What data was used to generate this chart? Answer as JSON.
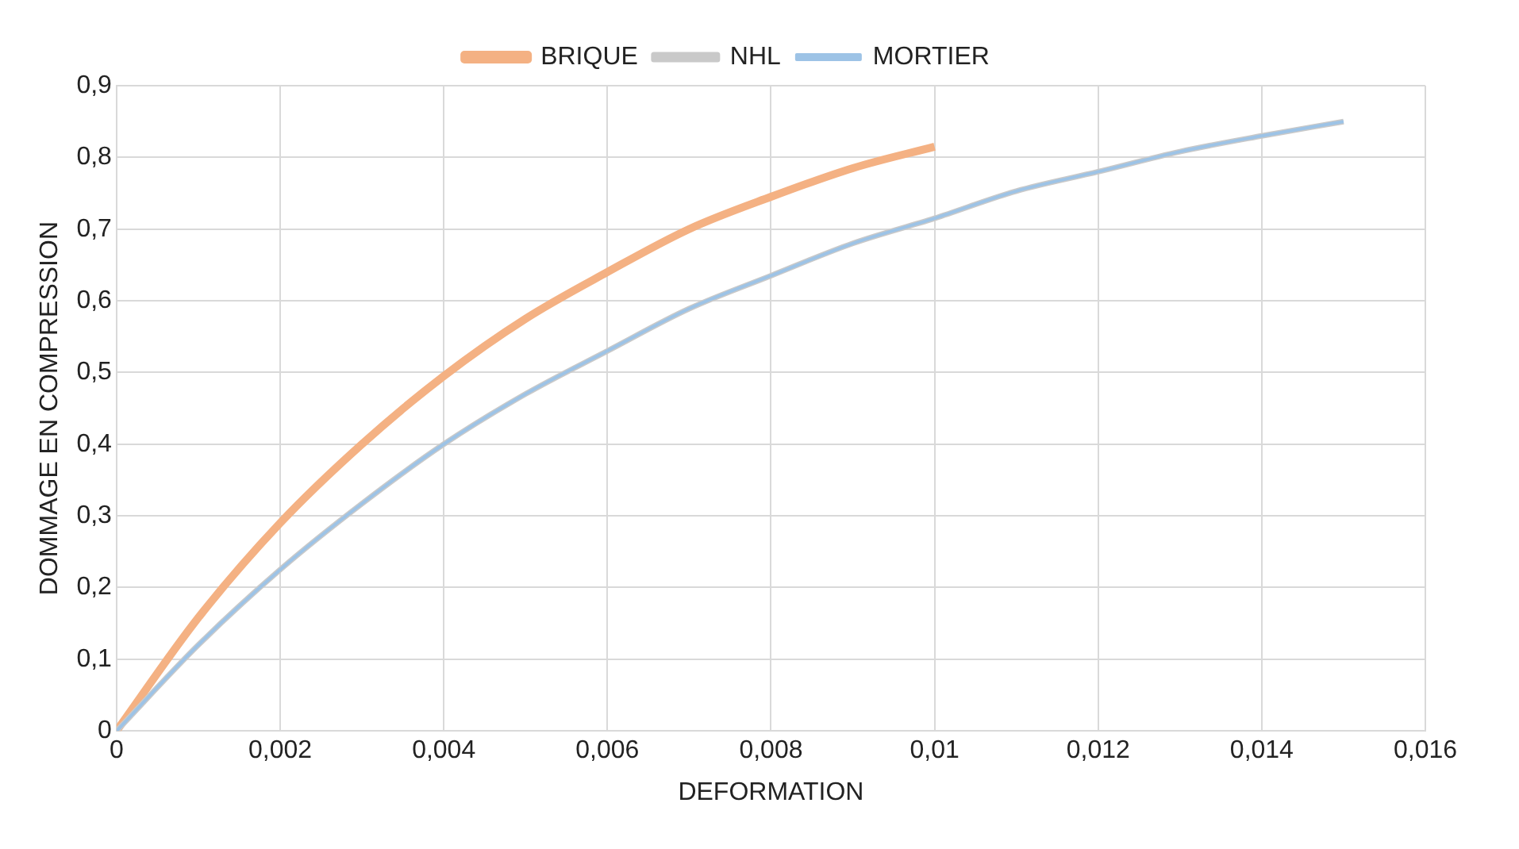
{
  "chart_data": {
    "type": "line",
    "xlabel": "DEFORMATION",
    "ylabel": "DOMMAGE EN COMPRESSION",
    "xlim": [
      0,
      0.016
    ],
    "xticks": [
      {
        "value": 0,
        "label": "0"
      },
      {
        "value": 0.002,
        "label": "0,002"
      },
      {
        "value": 0.004,
        "label": "0,004"
      },
      {
        "value": 0.006,
        "label": "0,006"
      },
      {
        "value": 0.008,
        "label": "0,008"
      },
      {
        "value": 0.01,
        "label": "0,01"
      },
      {
        "value": 0.012,
        "label": "0,012"
      },
      {
        "value": 0.014,
        "label": "0,014"
      },
      {
        "value": 0.016,
        "label": "0,016"
      }
    ],
    "ylim": [
      0,
      0.9
    ],
    "yticks": [
      {
        "value": 0,
        "label": "0"
      },
      {
        "value": 0.1,
        "label": "0,1"
      },
      {
        "value": 0.2,
        "label": "0,2"
      },
      {
        "value": 0.3,
        "label": "0,3"
      },
      {
        "value": 0.4,
        "label": "0,4"
      },
      {
        "value": 0.5,
        "label": "0,5"
      },
      {
        "value": 0.6,
        "label": "0,6"
      },
      {
        "value": 0.7,
        "label": "0,7"
      },
      {
        "value": 0.8,
        "label": "0,8"
      },
      {
        "value": 0.9,
        "label": "0,9"
      }
    ],
    "grid": true,
    "legend": "top",
    "marker": "none",
    "line_style": "solid",
    "series": [
      {
        "name": "BRIQUE",
        "color": "#f4b183",
        "x": [
          0,
          0.001,
          0.002,
          0.003,
          0.004,
          0.005,
          0.006,
          0.007,
          0.008,
          0.009,
          0.01
        ],
        "values": [
          0,
          0.158,
          0.29,
          0.4,
          0.495,
          0.575,
          0.64,
          0.7,
          0.745,
          0.785,
          0.815
        ]
      },
      {
        "name": "NHL",
        "color": "#c9c9c9",
        "x": [
          0,
          0.001,
          0.002,
          0.003,
          0.004,
          0.005,
          0.006,
          0.007,
          0.008,
          0.009,
          0.01,
          0.011,
          0.012,
          0.013,
          0.014,
          0.015
        ],
        "values": [
          0,
          0.12,
          0.225,
          0.317,
          0.4,
          0.47,
          0.53,
          0.589,
          0.635,
          0.68,
          0.715,
          0.753,
          0.78,
          0.808,
          0.83,
          0.85
        ]
      },
      {
        "name": "MORTIER",
        "color": "#9dc3e6",
        "x": [
          0,
          0.001,
          0.002,
          0.003,
          0.004,
          0.005,
          0.006,
          0.007,
          0.008,
          0.009,
          0.01,
          0.011,
          0.012,
          0.013,
          0.014,
          0.015
        ],
        "values": [
          0,
          0.12,
          0.225,
          0.317,
          0.4,
          0.47,
          0.53,
          0.589,
          0.635,
          0.68,
          0.715,
          0.753,
          0.78,
          0.808,
          0.83,
          0.85
        ]
      }
    ]
  }
}
